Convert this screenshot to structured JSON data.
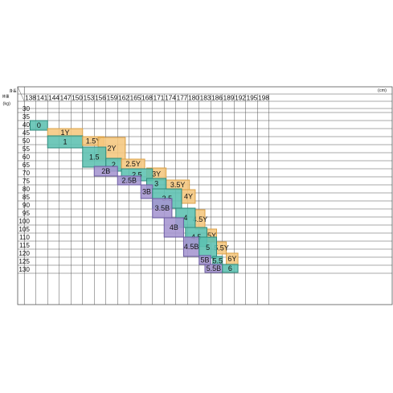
{
  "chart_data": {
    "type": "table",
    "corner": {
      "height_label": "身長",
      "weight_label": "体重"
    },
    "x_unit": "(cm)",
    "y_unit": "(kg)",
    "x_ticks": [
      138,
      141,
      144,
      147,
      150,
      153,
      156,
      159,
      162,
      165,
      168,
      171,
      174,
      177,
      180,
      183,
      186,
      189,
      192,
      195,
      198
    ],
    "y_ticks": [
      30,
      35,
      40,
      45,
      50,
      55,
      60,
      65,
      70,
      75,
      80,
      85,
      90,
      95,
      100,
      105,
      110,
      115,
      120,
      125,
      130
    ],
    "colors": {
      "Y": "#f5c77e",
      "regular": "#5cc0b0",
      "B": "#a595d0",
      "grid": "#555555"
    },
    "sizes": [
      {
        "label": "0",
        "fit": "regular",
        "height": [
          139.5,
          144.0
        ],
        "weight": [
          37.5,
          43.5
        ]
      },
      {
        "label": "1Y",
        "fit": "Y",
        "height": [
          144.0,
          153.0
        ],
        "weight": [
          42.5,
          47.5
        ]
      },
      {
        "label": "1",
        "fit": "regular",
        "height": [
          144.0,
          153.0
        ],
        "weight": [
          47.0,
          54.5
        ]
      },
      {
        "label": "1.5Y",
        "fit": "Y",
        "height": [
          153.0,
          158.5
        ],
        "weight": [
          47.5,
          53.0
        ]
      },
      {
        "label": "2Y",
        "fit": "Y",
        "height": [
          157.0,
          164.0
        ],
        "weight": [
          48.0,
          61.5
        ]
      },
      {
        "label": "1.5",
        "fit": "regular",
        "height": [
          153.0,
          159.0
        ],
        "weight": [
          54.0,
          66.5
        ]
      },
      {
        "label": "2",
        "fit": "regular",
        "height": [
          159.0,
          163.0
        ],
        "weight": [
          61.0,
          69.0
        ]
      },
      {
        "label": "2.5Y",
        "fit": "Y",
        "height": [
          163.0,
          169.0
        ],
        "weight": [
          61.5,
          67.5
        ]
      },
      {
        "label": "2B",
        "fit": "B",
        "height": [
          156.0,
          162.0
        ],
        "weight": [
          66.0,
          72.0
        ]
      },
      {
        "label": "3Y",
        "fit": "Y",
        "height": [
          169.5,
          174.5
        ],
        "weight": [
          67.0,
          74.5
        ]
      },
      {
        "label": "2.5",
        "fit": "regular",
        "height": [
          163.0,
          171.0
        ],
        "weight": [
          67.5,
          75.0
        ]
      },
      {
        "label": "2.5B",
        "fit": "B",
        "height": [
          162.0,
          168.0
        ],
        "weight": [
          72.0,
          77.5
        ]
      },
      {
        "label": "3.5Y",
        "fit": "Y",
        "height": [
          174.5,
          180.5
        ],
        "weight": [
          74.5,
          80.5
        ]
      },
      {
        "label": "3",
        "fit": "regular",
        "height": [
          169.5,
          174.5
        ],
        "weight": [
          73.5,
          80.0
        ]
      },
      {
        "label": "3B",
        "fit": "B",
        "height": [
          168.0,
          171.0
        ],
        "weight": [
          77.5,
          86.0
        ]
      },
      {
        "label": "4Y",
        "fit": "Y",
        "height": [
          178.5,
          182.0
        ],
        "weight": [
          80.5,
          89.0
        ]
      },
      {
        "label": "3.5",
        "fit": "regular",
        "height": [
          171.0,
          178.5
        ],
        "weight": [
          80.0,
          92.0
        ]
      },
      {
        "label": "3.5B",
        "fit": "B",
        "height": [
          171.0,
          176.0
        ],
        "weight": [
          86.0,
          98.0
        ]
      },
      {
        "label": "4.5Y",
        "fit": "Y",
        "height": [
          182.0,
          184.5
        ],
        "weight": [
          93.0,
          105.0
        ]
      },
      {
        "label": "4",
        "fit": "regular",
        "height": [
          177.0,
          182.0
        ],
        "weight": [
          92.0,
          104.0
        ]
      },
      {
        "label": "4B",
        "fit": "B",
        "height": [
          174.0,
          179.0
        ],
        "weight": [
          98.0,
          110.0
        ]
      },
      {
        "label": "5Y",
        "fit": "Y",
        "height": [
          185.0,
          187.5
        ],
        "weight": [
          105.0,
          113.0
        ]
      },
      {
        "label": "4.5",
        "fit": "regular",
        "height": [
          179.5,
          185.0
        ],
        "weight": [
          104.0,
          116.0
        ]
      },
      {
        "label": "4.5B",
        "fit": "B",
        "height": [
          179.0,
          183.0
        ],
        "weight": [
          110.0,
          122.0
        ]
      },
      {
        "label": "5.5Y",
        "fit": "Y",
        "height": [
          187.5,
          190.0
        ],
        "weight": [
          113.0,
          120.5
        ]
      },
      {
        "label": "5",
        "fit": "regular",
        "height": [
          183.0,
          187.5
        ],
        "weight": [
          110.0,
          123.0
        ]
      },
      {
        "label": "5B",
        "fit": "B",
        "height": [
          183.0,
          186.0
        ],
        "weight": [
          121.5,
          127.0
        ]
      },
      {
        "label": "5.5",
        "fit": "regular",
        "height": [
          186.5,
          189.0
        ],
        "weight": [
          122.0,
          127.5
        ]
      },
      {
        "label": "6Y",
        "fit": "Y",
        "height": [
          190.0,
          193.0
        ],
        "weight": [
          120.0,
          127.0
        ]
      },
      {
        "label": "5.5B",
        "fit": "B",
        "height": [
          184.5,
          189.0
        ],
        "weight": [
          127.0,
          132.0
        ]
      },
      {
        "label": "6",
        "fit": "regular",
        "height": [
          189.0,
          193.0
        ],
        "weight": [
          127.0,
          132.0
        ]
      }
    ]
  }
}
